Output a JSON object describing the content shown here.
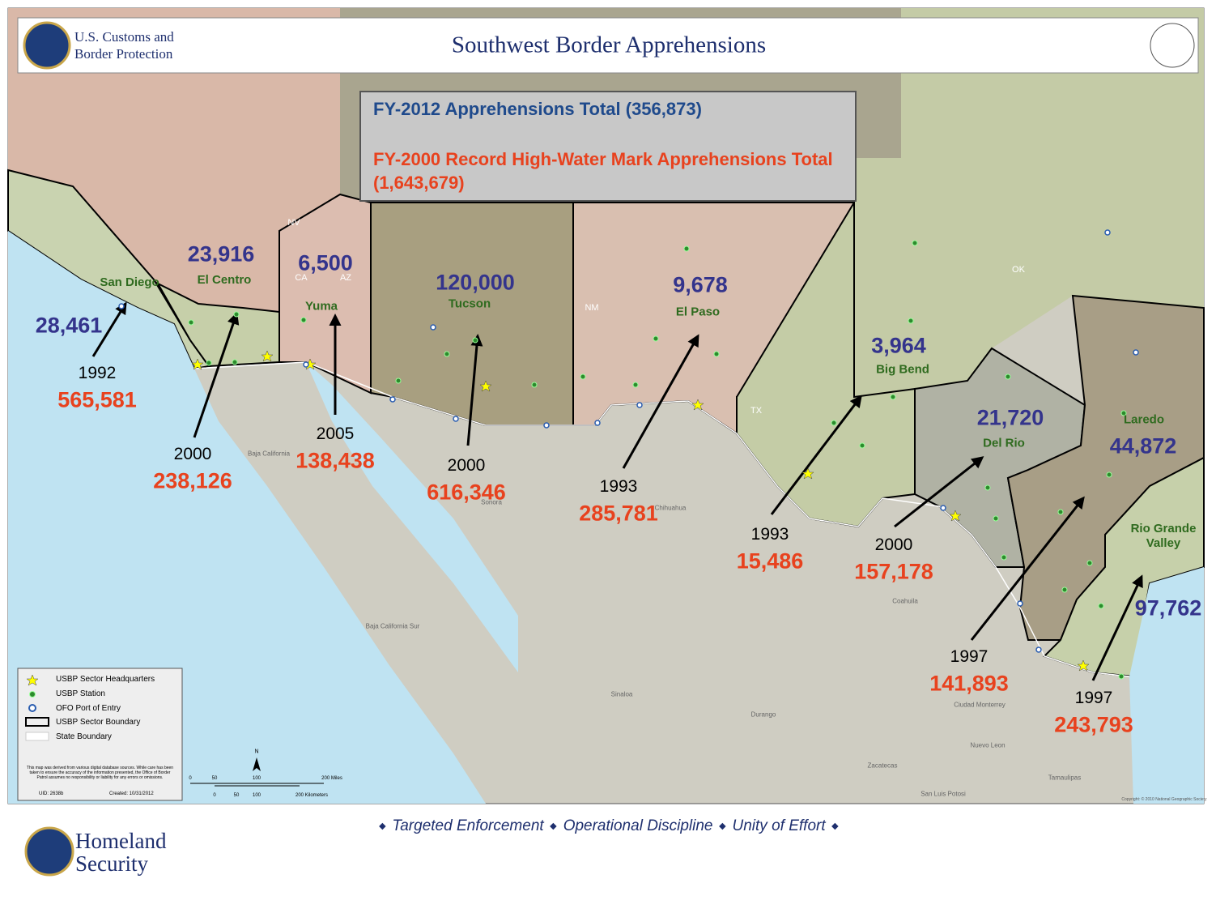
{
  "header": {
    "agency": "U.S. Customs and Border Protection",
    "title": "Southwest Border Apprehensions"
  },
  "summary": {
    "current": "FY-2012 Apprehensions Total (356,873)",
    "record": "FY-2000 Record High-Water Mark Apprehensions Total (1,643,679)"
  },
  "sectors": [
    {
      "name": "San Diego",
      "fy2012": "28,461",
      "record_year": "1992",
      "record": "565,581"
    },
    {
      "name": "El Centro",
      "fy2012": "23,916",
      "record_year": "2000",
      "record": "238,126"
    },
    {
      "name": "Yuma",
      "fy2012": "6,500",
      "record_year": "2005",
      "record": "138,438"
    },
    {
      "name": "Tucson",
      "fy2012": "120,000",
      "record_year": "2000",
      "record": "616,346"
    },
    {
      "name": "El Paso",
      "fy2012": "9,678",
      "record_year": "1993",
      "record": "285,781"
    },
    {
      "name": "Big Bend",
      "fy2012": "3,964",
      "record_year": "1993",
      "record": "15,486"
    },
    {
      "name": "Del Rio",
      "fy2012": "21,720",
      "record_year": "2000",
      "record": "157,178"
    },
    {
      "name": "Laredo",
      "fy2012": "44,872",
      "record_year": "1997",
      "record": "141,893"
    },
    {
      "name": "Rio Grande Valley",
      "fy2012": "97,762",
      "record_year": "1997",
      "record": "243,793"
    }
  ],
  "state_labels": [
    "NV",
    "CA",
    "AZ",
    "NM",
    "TX",
    "OK"
  ],
  "mexico_labels": [
    "Baja California",
    "Sonora",
    "Chihuahua",
    "Baja California Sur",
    "Coahuila",
    "Sinaloa",
    "Durango",
    "Ciudad Monterrey",
    "Nuevo Leon",
    "Zacatecas",
    "Tamaulipas",
    "San Luis Potosi"
  ],
  "legend": {
    "items": [
      "USBP Sector Headquarters",
      "USBP Station",
      "OFO Port of Entry",
      "USBP Sector Boundary",
      "State Boundary"
    ],
    "disclaimer": "This map was derived from various digital database sources. While care has been taken to ensure the accuracy of the information presented, the Office of Border Patrol assumes no responsibility or liability for any errors or omissions.",
    "uid": "UID:  2638b",
    "created": "Created:  10/31/2012"
  },
  "scale": {
    "north": "N",
    "miles": [
      "0",
      "50",
      "100",
      "200 Miles"
    ],
    "km": [
      "0",
      "50",
      "100",
      "200 Kilometers"
    ]
  },
  "copyright": "Copyright: © 2010 National Geographic Society",
  "footer": {
    "tagline": [
      "Targeted Enforcement",
      "Operational Discipline",
      "Unity of Effort"
    ],
    "agency": "Homeland Security"
  }
}
